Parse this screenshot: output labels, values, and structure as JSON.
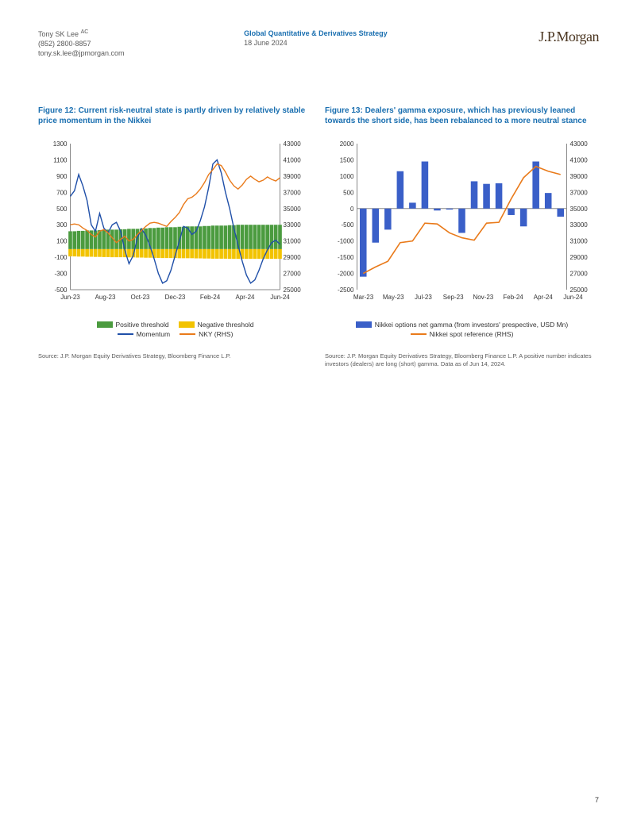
{
  "header": {
    "author": "Tony SK Lee",
    "author_suffix": "AC",
    "phone": "(852) 2800-8857",
    "email": "tony.sk.lee@jpmorgan.com",
    "dept": "Global Quantitative & Derivatives Strategy",
    "date": "18 June 2024",
    "brand": "J.P.Morgan"
  },
  "page_number": "7",
  "fig12": {
    "title": "Figure 12: Current risk-neutral state is partly driven by relatively stable price momentum in the Nikkei",
    "source": "Source: J.P. Morgan Equity Derivatives Strategy, Bloomberg Finance L.P.",
    "x_labels": [
      "Jun-23",
      "Aug-23",
      "Oct-23",
      "Dec-23",
      "Feb-24",
      "Apr-24",
      "Jun-24"
    ],
    "y_left": {
      "min": -500,
      "max": 1300,
      "step": 200
    },
    "y_right": {
      "min": 25000,
      "max": 43000,
      "step": 2000
    },
    "colors": {
      "positive": "#4b9b3f",
      "negative": "#f2c300",
      "momentum": "#1f4fa8",
      "nky": "#e97a1a",
      "axis": "#888888",
      "tick_text": "#333333"
    },
    "legend": {
      "positive": "Positive threshold",
      "negative": "Negative threshold",
      "momentum": "Momentum",
      "nky": "NKY (RHS)"
    },
    "positive_threshold": [
      220,
      220,
      225,
      225,
      230,
      230,
      230,
      235,
      235,
      240,
      240,
      240,
      245,
      245,
      250,
      250,
      250,
      255,
      255,
      260,
      260,
      265,
      265,
      270,
      270,
      270,
      275,
      275,
      280,
      280,
      280,
      280,
      285,
      285,
      290,
      290,
      290,
      290,
      295,
      295,
      300,
      300,
      300,
      300,
      300,
      300,
      300,
      300,
      300,
      300,
      300
    ],
    "negative_threshold": [
      -90,
      -90,
      -92,
      -92,
      -94,
      -94,
      -96,
      -96,
      -98,
      -98,
      -100,
      -100,
      -100,
      -100,
      -102,
      -102,
      -104,
      -104,
      -106,
      -106,
      -108,
      -108,
      -110,
      -110,
      -110,
      -110,
      -112,
      -112,
      -112,
      -112,
      -114,
      -114,
      -116,
      -116,
      -118,
      -118,
      -118,
      -118,
      -120,
      -120,
      -120,
      -120,
      -120,
      -120,
      -120,
      -120,
      -120,
      -120,
      -120,
      -120,
      -120
    ],
    "momentum": [
      650,
      720,
      920,
      780,
      600,
      300,
      220,
      440,
      260,
      200,
      300,
      330,
      220,
      -10,
      -180,
      -80,
      140,
      250,
      170,
      40,
      -120,
      -300,
      -420,
      -390,
      -260,
      -80,
      100,
      280,
      260,
      180,
      220,
      350,
      520,
      760,
      1050,
      1100,
      940,
      700,
      500,
      260,
      50,
      -150,
      -320,
      -420,
      -380,
      -260,
      -120,
      -10,
      80,
      110,
      60
    ],
    "nky": [
      33000,
      33100,
      33000,
      32600,
      32300,
      31800,
      31500,
      32200,
      32400,
      32000,
      31400,
      30800,
      31200,
      31600,
      31000,
      31200,
      31800,
      32300,
      32800,
      33200,
      33300,
      33200,
      33000,
      32800,
      33400,
      33900,
      34500,
      35500,
      36200,
      36400,
      36800,
      37400,
      38200,
      39200,
      39800,
      40500,
      40300,
      39500,
      38500,
      37800,
      37400,
      37900,
      38600,
      39000,
      38600,
      38300,
      38500,
      38900,
      38600,
      38400,
      38800
    ]
  },
  "fig13": {
    "title": "Figure 13: Dealers' gamma exposure, which has previously leaned towards the short side, has been rebalanced to a more neutral stance",
    "source": "Source: J.P. Morgan Equity Derivatives Strategy, Bloomberg Finance L.P. A positive number indicates investors (dealers) are long (short) gamma. Data as of Jun 14, 2024.",
    "x_labels": [
      "Mar-23",
      "May-23",
      "Jul-23",
      "Sep-23",
      "Nov-23",
      "Feb-24",
      "Apr-24",
      "Jun-24"
    ],
    "y_left": {
      "min": -2500,
      "max": 2000,
      "step": 500
    },
    "y_right": {
      "min": 25000,
      "max": 43000,
      "step": 2000
    },
    "colors": {
      "bars": "#3a5fc8",
      "line": "#e97a1a",
      "axis": "#888888",
      "tick_text": "#333333"
    },
    "legend": {
      "bars": "Nikkei options net gamma (from investors' prespective, USD Mn)",
      "line": "Nikkei spot reference (RHS)"
    },
    "gamma": [
      -2100,
      -1050,
      -650,
      1150,
      180,
      1450,
      -60,
      -30,
      -750,
      840,
      760,
      780,
      -200,
      -550,
      1450,
      480,
      -250
    ],
    "spot": [
      27000,
      27800,
      28500,
      30800,
      31000,
      33200,
      33100,
      32000,
      31400,
      31100,
      33200,
      33300,
      36200,
      38800,
      40200,
      39600,
      39200
    ]
  }
}
